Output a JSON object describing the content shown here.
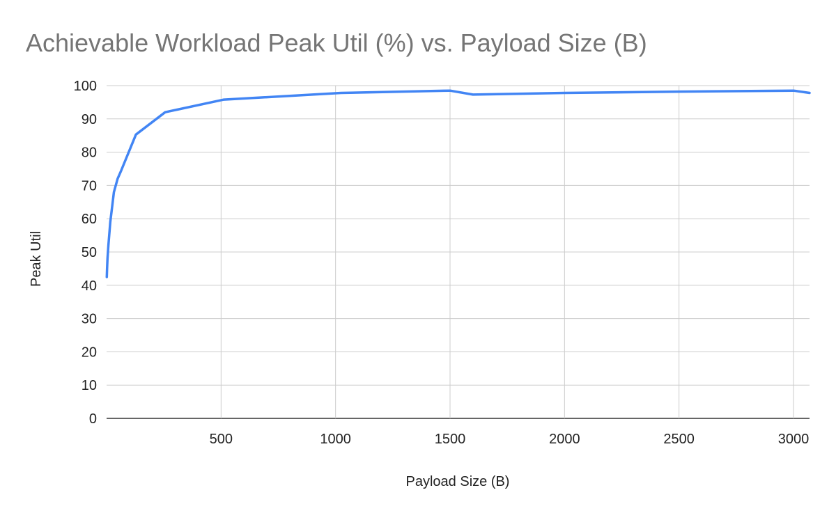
{
  "chart_data": {
    "type": "line",
    "title": "Achievable Workload Peak Util (%) vs. Payload Size (B)",
    "xlabel": "Payload Size (B)",
    "ylabel": "Peak Util",
    "xlim": [
      0,
      3070
    ],
    "ylim": [
      0,
      100
    ],
    "x_ticks": [
      500,
      1000,
      1500,
      2000,
      2500,
      3000
    ],
    "y_ticks": [
      0,
      10,
      20,
      30,
      40,
      50,
      60,
      70,
      80,
      90,
      100
    ],
    "grid": true,
    "line_color": "#4285F4",
    "series": [
      {
        "x": [
          1,
          2,
          4,
          8,
          16,
          32,
          48,
          64,
          128,
          256,
          512,
          1024,
          1500,
          1600,
          2000,
          2500,
          3000,
          3070
        ],
        "values": [
          42.5,
          45,
          48,
          52,
          59,
          68,
          72,
          74.5,
          85.3,
          92,
          95.8,
          97.8,
          98.5,
          97.3,
          97.8,
          98.2,
          98.5,
          97.8
        ]
      }
    ]
  }
}
